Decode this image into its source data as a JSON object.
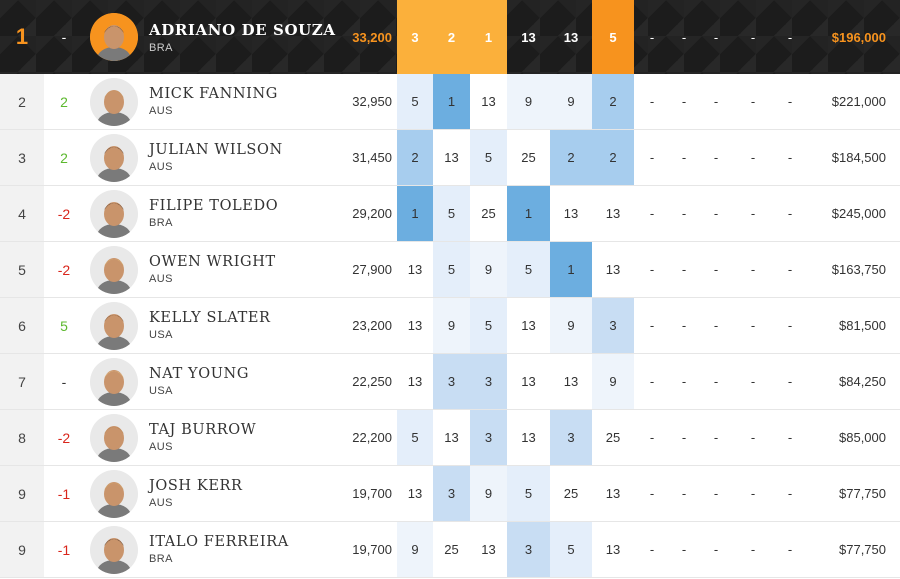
{
  "colors": {
    "header_bg": "#1c1c1c",
    "accent_orange": "#f7931e",
    "orange_light": "#fbb03b",
    "blue_strong": "#6caee0",
    "blue_mid": "#a7cdee",
    "blue_soft": "#c8ddf3",
    "blue_pale": "#e4eefa",
    "up_green": "#5cb82e",
    "down_red": "#d9261c"
  },
  "leader": {
    "rank": "1",
    "move": "-",
    "name": "ADRIANO DE SOUZA",
    "country": "BRA",
    "points": "33,200",
    "events": [
      "3",
      "2",
      "1",
      "13",
      "13",
      "5"
    ],
    "dashes": [
      "-",
      "-",
      "-",
      "-",
      "-"
    ],
    "prize": "$196,000"
  },
  "rows": [
    {
      "rank": "2",
      "move": "2",
      "dir": "up",
      "name": "MICK FANNING",
      "country": "AUS",
      "points": "32,950",
      "events": [
        "5",
        "1",
        "13",
        "9",
        "9",
        "2"
      ],
      "dashes": [
        "-",
        "-",
        "-",
        "-",
        "-"
      ],
      "prize": "$221,000"
    },
    {
      "rank": "3",
      "move": "2",
      "dir": "up",
      "name": "JULIAN WILSON",
      "country": "AUS",
      "points": "31,450",
      "events": [
        "2",
        "13",
        "5",
        "25",
        "2",
        "2"
      ],
      "dashes": [
        "-",
        "-",
        "-",
        "-",
        "-"
      ],
      "prize": "$184,500"
    },
    {
      "rank": "4",
      "move": "-2",
      "dir": "down",
      "name": "FILIPE TOLEDO",
      "country": "BRA",
      "points": "29,200",
      "events": [
        "1",
        "5",
        "25",
        "1",
        "13",
        "13"
      ],
      "dashes": [
        "-",
        "-",
        "-",
        "-",
        "-"
      ],
      "prize": "$245,000"
    },
    {
      "rank": "5",
      "move": "-2",
      "dir": "down",
      "name": "OWEN WRIGHT",
      "country": "AUS",
      "points": "27,900",
      "events": [
        "13",
        "5",
        "9",
        "5",
        "1",
        "13"
      ],
      "dashes": [
        "-",
        "-",
        "-",
        "-",
        "-"
      ],
      "prize": "$163,750"
    },
    {
      "rank": "6",
      "move": "5",
      "dir": "up",
      "name": "KELLY SLATER",
      "country": "USA",
      "points": "23,200",
      "events": [
        "13",
        "9",
        "5",
        "13",
        "9",
        "3"
      ],
      "dashes": [
        "-",
        "-",
        "-",
        "-",
        "-"
      ],
      "prize": "$81,500"
    },
    {
      "rank": "7",
      "move": "-",
      "dir": "same",
      "name": "NAT YOUNG",
      "country": "USA",
      "points": "22,250",
      "events": [
        "13",
        "3",
        "3",
        "13",
        "13",
        "9"
      ],
      "dashes": [
        "-",
        "-",
        "-",
        "-",
        "-"
      ],
      "prize": "$84,250"
    },
    {
      "rank": "8",
      "move": "-2",
      "dir": "down",
      "name": "TAJ BURROW",
      "country": "AUS",
      "points": "22,200",
      "events": [
        "5",
        "13",
        "3",
        "13",
        "3",
        "25"
      ],
      "dashes": [
        "-",
        "-",
        "-",
        "-",
        "-"
      ],
      "prize": "$85,000"
    },
    {
      "rank": "9",
      "move": "-1",
      "dir": "down",
      "name": "JOSH KERR",
      "country": "AUS",
      "points": "19,700",
      "events": [
        "13",
        "3",
        "9",
        "5",
        "25",
        "13"
      ],
      "dashes": [
        "-",
        "-",
        "-",
        "-",
        "-"
      ],
      "prize": "$77,750"
    },
    {
      "rank": "9",
      "move": "-1",
      "dir": "down",
      "name": "ITALO FERREIRA",
      "country": "BRA",
      "points": "19,700",
      "events": [
        "9",
        "25",
        "13",
        "3",
        "5",
        "13"
      ],
      "dashes": [
        "-",
        "-",
        "-",
        "-",
        "-"
      ],
      "prize": "$77,750"
    }
  ]
}
